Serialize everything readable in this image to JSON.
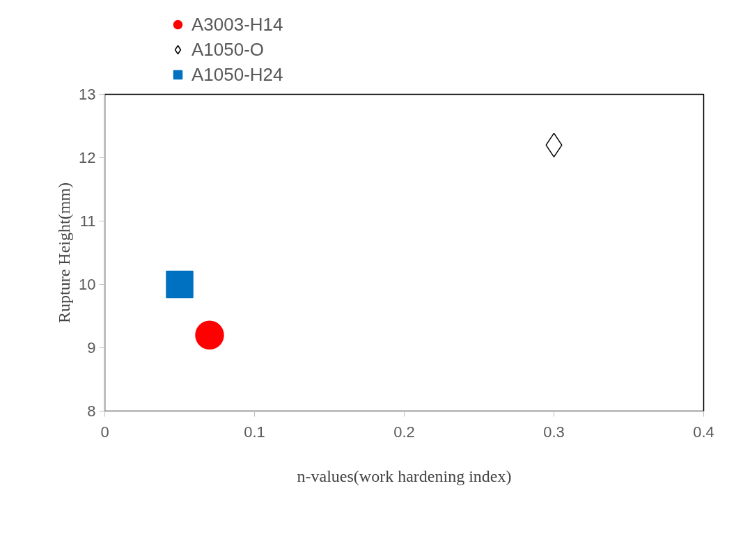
{
  "chart_data": {
    "type": "scatter",
    "xlabel": "n-values(work hardening index)",
    "ylabel": "Rupture Height(mm)",
    "xlim": [
      0,
      0.4
    ],
    "xticks": [
      0,
      0.1,
      0.2,
      0.3,
      0.4
    ],
    "ylim": [
      8,
      13
    ],
    "yticks": [
      8,
      9,
      10,
      11,
      12,
      13
    ],
    "grid": false,
    "legend": "top left",
    "series": [
      {
        "name": "A3003-H14",
        "color": "#ff0000",
        "marker": "circle",
        "x": [
          0.07
        ],
        "values": [
          9.2
        ]
      },
      {
        "name": "A1050-O",
        "color": "#000000",
        "marker": "diamond",
        "x": [
          0.3
        ],
        "values": [
          12.2
        ]
      },
      {
        "name": "A1050-H24",
        "color": "#0070c0",
        "marker": "square",
        "x": [
          0.05
        ],
        "values": [
          10.0
        ]
      }
    ]
  }
}
